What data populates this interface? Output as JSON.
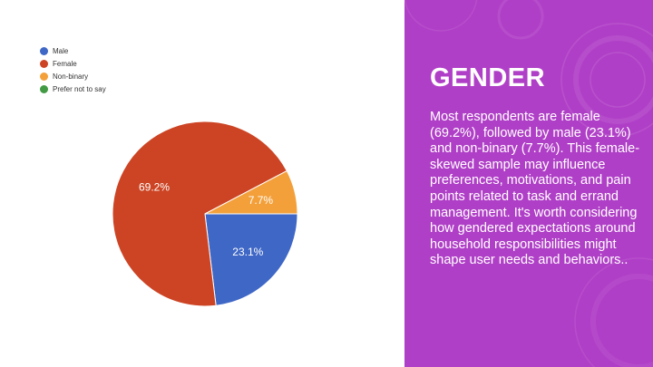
{
  "chart_data": {
    "type": "pie",
    "categories": [
      "Male",
      "Female",
      "Non-binary",
      "Prefer not to say"
    ],
    "values": [
      23.1,
      69.2,
      7.7,
      0
    ],
    "colors": [
      "#3f67c6",
      "#cc4424",
      "#f3a03b",
      "#429a45"
    ],
    "slice_labels": [
      "23.1%",
      "69.2%",
      "7.7%",
      ""
    ],
    "legend": "top-left"
  },
  "panel": {
    "title": "GENDER",
    "body": "Most respondents are female (69.2%), followed by male (23.1%) and non-binary (7.7%). This female-skewed sample may influence preferences, motivations, and pain points related to task and errand management. It's worth considering how gendered expectations around household responsibilities might shape user needs and behaviors..",
    "background": "#b03fc7"
  }
}
